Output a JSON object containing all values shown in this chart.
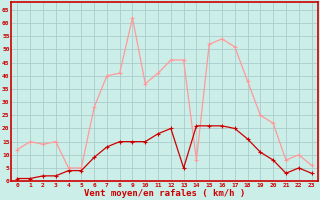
{
  "hours": [
    0,
    1,
    2,
    3,
    4,
    5,
    6,
    7,
    8,
    9,
    10,
    11,
    12,
    13,
    14,
    15,
    16,
    17,
    18,
    19,
    20,
    21,
    22,
    23
  ],
  "rafales": [
    12,
    15,
    14,
    15,
    5,
    5,
    28,
    40,
    41,
    62,
    37,
    41,
    46,
    46,
    8,
    52,
    54,
    51,
    38,
    25,
    22,
    8,
    10,
    6
  ],
  "moyen": [
    1,
    1,
    2,
    2,
    4,
    4,
    9,
    13,
    15,
    15,
    15,
    18,
    20,
    5,
    21,
    21,
    21,
    20,
    16,
    11,
    8,
    3,
    5,
    3
  ],
  "bg_color": "#cceee8",
  "grid_color": "#aacccc",
  "line_rafales_color": "#ff9999",
  "line_moyen_color": "#cc0000",
  "border_color": "#cc0000",
  "xlabel": "Vent moyen/en rafales ( km/h )",
  "xlabel_color": "#cc0000",
  "tick_color": "#cc0000",
  "yticks": [
    0,
    5,
    10,
    15,
    20,
    25,
    30,
    35,
    40,
    45,
    50,
    55,
    60,
    65
  ],
  "ylim": [
    0,
    68
  ],
  "xlim": [
    -0.5,
    23.5
  ]
}
